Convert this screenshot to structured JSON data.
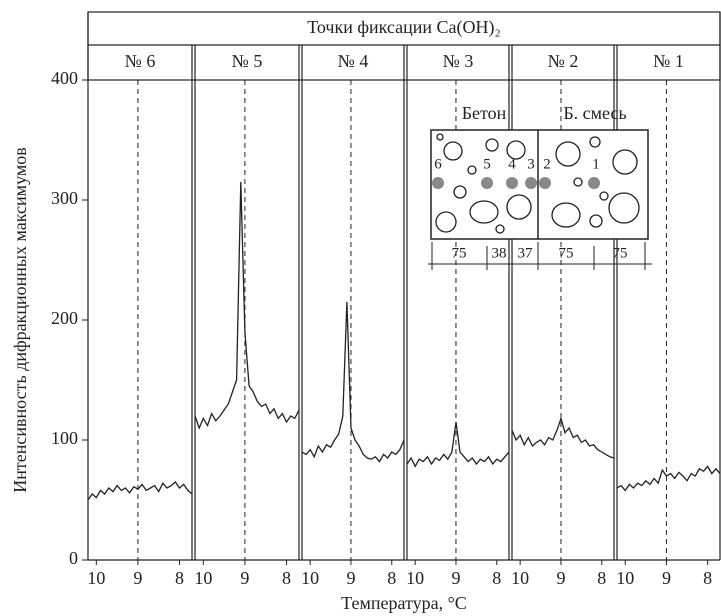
{
  "chart_data": {
    "type": "line",
    "title": "Точки фиксации Ca(OH)₂",
    "y_label": "Интенсивность дифракционных максимумов",
    "x_label": "Температура, °C",
    "ylim": [
      0,
      400
    ],
    "yticks": [
      0,
      100,
      200,
      300,
      400
    ],
    "color": "#222222",
    "panels": [
      {
        "name": "№ 6",
        "xlim": [
          10.2,
          7.7
        ],
        "xticks": [
          10,
          9,
          8
        ],
        "x": [
          10.2,
          10.1,
          10.0,
          9.9,
          9.8,
          9.7,
          9.6,
          9.5,
          9.4,
          9.3,
          9.2,
          9.1,
          9.0,
          8.9,
          8.8,
          8.7,
          8.6,
          8.5,
          8.4,
          8.3,
          8.2,
          8.1,
          8.0,
          7.9,
          7.8,
          7.7
        ],
        "values": [
          50,
          55,
          52,
          58,
          55,
          60,
          57,
          62,
          58,
          60,
          56,
          61,
          59,
          63,
          58,
          60,
          62,
          57,
          64,
          60,
          62,
          65,
          60,
          63,
          58,
          55
        ]
      },
      {
        "name": "№ 5",
        "xlim": [
          10.2,
          7.7
        ],
        "xticks": [
          10,
          9,
          8
        ],
        "x": [
          10.2,
          10.1,
          10.0,
          9.9,
          9.8,
          9.7,
          9.6,
          9.5,
          9.4,
          9.3,
          9.2,
          9.1,
          9.0,
          8.9,
          8.8,
          8.7,
          8.6,
          8.5,
          8.4,
          8.3,
          8.2,
          8.1,
          8.0,
          7.9,
          7.8,
          7.7
        ],
        "values": [
          120,
          110,
          118,
          112,
          122,
          116,
          120,
          125,
          130,
          140,
          150,
          315,
          190,
          145,
          140,
          132,
          128,
          130,
          122,
          126,
          118,
          122,
          115,
          120,
          118,
          125
        ]
      },
      {
        "name": "№ 4",
        "xlim": [
          10.2,
          7.7
        ],
        "xticks": [
          10,
          9,
          8
        ],
        "x": [
          10.2,
          10.1,
          10.0,
          9.9,
          9.8,
          9.7,
          9.6,
          9.5,
          9.4,
          9.3,
          9.2,
          9.1,
          9.0,
          8.9,
          8.8,
          8.7,
          8.6,
          8.5,
          8.4,
          8.3,
          8.2,
          8.1,
          8.0,
          7.9,
          7.8,
          7.7
        ],
        "values": [
          90,
          88,
          92,
          86,
          95,
          90,
          96,
          94,
          100,
          105,
          120,
          215,
          110,
          100,
          95,
          88,
          85,
          84,
          86,
          82,
          88,
          85,
          90,
          88,
          92,
          100
        ]
      },
      {
        "name": "№ 3",
        "xlim": [
          10.2,
          7.7
        ],
        "xticks": [
          10,
          9,
          8
        ],
        "x": [
          10.2,
          10.1,
          10.0,
          9.9,
          9.8,
          9.7,
          9.6,
          9.5,
          9.4,
          9.3,
          9.2,
          9.1,
          9.0,
          8.9,
          8.8,
          8.7,
          8.6,
          8.5,
          8.4,
          8.3,
          8.2,
          8.1,
          8.0,
          7.9,
          7.8,
          7.7
        ],
        "values": [
          80,
          85,
          78,
          84,
          82,
          86,
          80,
          85,
          83,
          88,
          84,
          90,
          115,
          90,
          86,
          82,
          85,
          80,
          84,
          82,
          86,
          80,
          84,
          82,
          86,
          90
        ]
      },
      {
        "name": "№ 2",
        "xlim": [
          10.2,
          7.7
        ],
        "xticks": [
          10,
          9,
          8
        ],
        "x": [
          10.2,
          10.1,
          10.0,
          9.9,
          9.8,
          9.7,
          9.6,
          9.5,
          9.4,
          9.3,
          9.2,
          9.1,
          9.0,
          8.9,
          8.8,
          8.7,
          8.6,
          8.5,
          8.4,
          8.3,
          8.2,
          8.1,
          8.0,
          7.9,
          7.8,
          7.7
        ],
        "values": [
          108,
          100,
          104,
          96,
          102,
          95,
          98,
          100,
          96,
          102,
          100,
          108,
          118,
          106,
          110,
          102,
          104,
          98,
          100,
          95,
          96,
          92,
          90,
          88,
          86,
          85
        ]
      },
      {
        "name": "№ 1",
        "xlim": [
          10.2,
          7.7
        ],
        "xticks": [
          10,
          9,
          8
        ],
        "x": [
          10.2,
          10.1,
          10.0,
          9.9,
          9.8,
          9.7,
          9.6,
          9.5,
          9.4,
          9.3,
          9.2,
          9.1,
          9.0,
          8.9,
          8.8,
          8.7,
          8.6,
          8.5,
          8.4,
          8.3,
          8.2,
          8.1,
          8.0,
          7.9,
          7.8,
          7.7
        ],
        "values": [
          60,
          62,
          58,
          63,
          60,
          64,
          62,
          66,
          63,
          68,
          64,
          75,
          70,
          72,
          68,
          73,
          70,
          66,
          72,
          70,
          76,
          74,
          78,
          72,
          76,
          72
        ]
      }
    ],
    "inset": {
      "labels": [
        "Бетон",
        "Б. смесь"
      ],
      "points": [
        "6",
        "5",
        "4",
        "3",
        "2",
        "1"
      ],
      "dimensions": [
        75,
        38,
        37,
        75,
        75
      ]
    }
  }
}
